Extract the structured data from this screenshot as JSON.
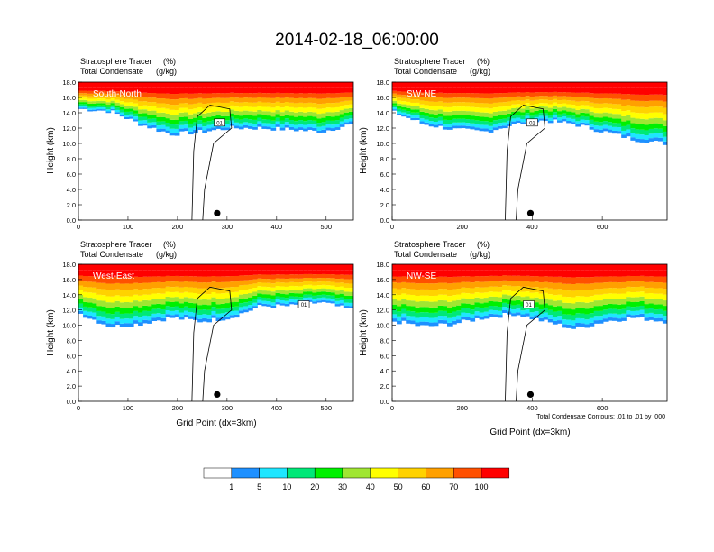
{
  "title": "2014-02-18_06:00:00",
  "chart_data": {
    "type": "heatmap",
    "variable_label": "Stratosphere Tracer",
    "variable_units": "(%)",
    "contour_label": "Total Condensate",
    "contour_units": "(g/kg)",
    "ylabel": "Height (km)",
    "xlabel": "Grid Point (dx=3km)",
    "y_ticks": [
      "0.0",
      "2.0",
      "4.0",
      "6.0",
      "8.0",
      "10.0",
      "12.0",
      "14.0",
      "16.0",
      "18.0"
    ],
    "ylim": [
      0,
      18
    ],
    "contour_info": "Total Condensate Contours: .01 to .01 by .000",
    "contour_line_label": "01",
    "colorbar": {
      "labels": [
        "1",
        "5",
        "10",
        "20",
        "30",
        "40",
        "50",
        "60",
        "70",
        "100"
      ],
      "colors": [
        "#ffffff",
        "#1e90ff",
        "#1ee6ff",
        "#00e878",
        "#00f000",
        "#a0e632",
        "#ffff00",
        "#ffd200",
        "#ffa000",
        "#ff5000",
        "#ff0000"
      ]
    },
    "panels": [
      {
        "label": "South-North",
        "xlim": [
          0,
          555
        ],
        "x_ticks": [
          "0",
          "100",
          "200",
          "300",
          "400",
          "500"
        ],
        "x_tick_values": [
          0,
          100,
          200,
          300,
          400,
          500
        ],
        "marker_x": 280,
        "layer_bottom_km": [
          14.5,
          14.2,
          12.5,
          11.2,
          11.5,
          12.0,
          12.0,
          11.8,
          11.5,
          12.5
        ],
        "contour_label_x": 285
      },
      {
        "label": "SW-NE",
        "xlim": [
          0,
          785
        ],
        "x_ticks": [
          "0",
          "200",
          "400",
          "600"
        ],
        "x_tick_values": [
          0,
          200,
          400,
          600
        ],
        "marker_x": 395,
        "layer_bottom_km": [
          14.0,
          12.5,
          11.8,
          11.5,
          12.5,
          13.0,
          12.5,
          11.5,
          10.5,
          10.0
        ],
        "contour_label_x": 400
      },
      {
        "label": "West-East",
        "xlim": [
          0,
          555
        ],
        "x_ticks": [
          "0",
          "100",
          "200",
          "300",
          "400",
          "500"
        ],
        "x_tick_values": [
          0,
          100,
          200,
          300,
          400,
          500
        ],
        "marker_x": 280,
        "layer_bottom_km": [
          11.5,
          9.8,
          10.2,
          11.0,
          10.5,
          11.0,
          12.5,
          12.5,
          13.0,
          12.0
        ],
        "contour_label_x": 455
      },
      {
        "label": "NW-SE",
        "xlim": [
          0,
          785
        ],
        "x_ticks": [
          "0",
          "200",
          "400",
          "600"
        ],
        "x_tick_values": [
          0,
          200,
          400,
          600
        ],
        "marker_x": 395,
        "layer_bottom_km": [
          10.5,
          9.8,
          10.2,
          11.0,
          11.5,
          10.5,
          9.5,
          10.5,
          11.0,
          10.5
        ],
        "contour_label_x": 390
      }
    ]
  }
}
